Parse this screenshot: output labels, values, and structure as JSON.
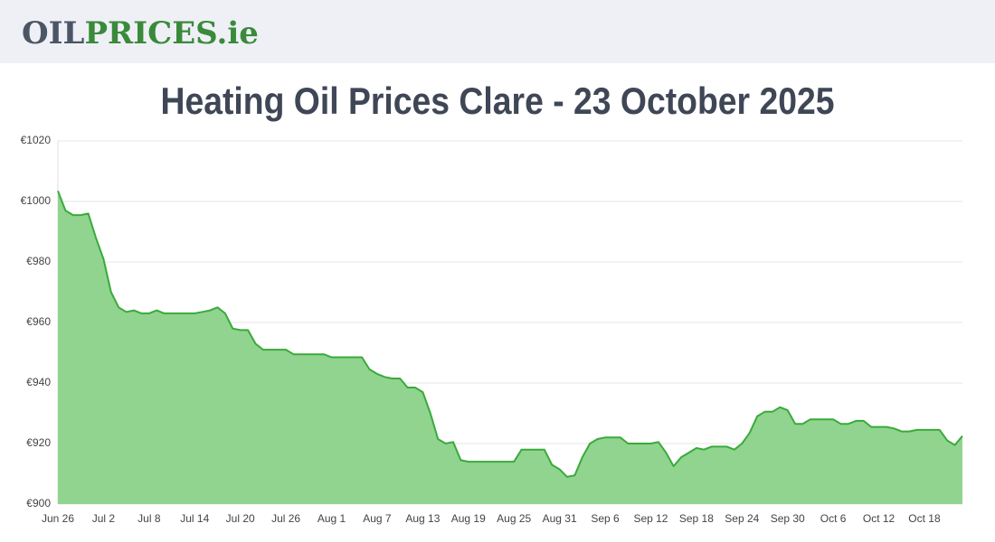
{
  "header": {
    "logo_dark": "OIL",
    "logo_green": "PRICES.ie"
  },
  "chart_data": {
    "type": "area",
    "title": "Heating Oil Prices Clare - 23 October 2025",
    "categories": [
      "Jun 26",
      null,
      null,
      null,
      null,
      null,
      "Jul 2",
      null,
      null,
      null,
      null,
      null,
      "Jul 8",
      null,
      null,
      null,
      null,
      null,
      "Jul 14",
      null,
      null,
      null,
      null,
      null,
      "Jul 20",
      null,
      null,
      null,
      null,
      null,
      "Jul 26",
      null,
      null,
      null,
      null,
      null,
      "Aug 1",
      null,
      null,
      null,
      null,
      null,
      "Aug 7",
      null,
      null,
      null,
      null,
      null,
      "Aug 13",
      null,
      null,
      null,
      null,
      null,
      "Aug 19",
      null,
      null,
      null,
      null,
      null,
      "Aug 25",
      null,
      null,
      null,
      null,
      null,
      "Aug 31",
      null,
      null,
      null,
      null,
      null,
      "Sep 6",
      null,
      null,
      null,
      null,
      null,
      "Sep 12",
      null,
      null,
      null,
      null,
      null,
      "Sep 18",
      null,
      null,
      null,
      null,
      null,
      "Sep 24",
      null,
      null,
      null,
      null,
      null,
      "Sep 30",
      null,
      null,
      null,
      null,
      null,
      "Oct 6",
      null,
      null,
      null,
      null,
      null,
      "Oct 12",
      null,
      null,
      null,
      null,
      null,
      "Oct 18",
      null,
      null,
      null,
      null,
      null
    ],
    "values": [
      1003.5,
      997,
      995.5,
      995.5,
      996,
      988,
      981,
      970,
      965,
      963.5,
      964,
      963,
      963,
      964,
      963,
      963,
      963,
      963,
      963,
      963.5,
      964,
      965,
      963,
      958,
      957.5,
      957.5,
      953,
      951,
      951,
      951,
      951,
      949.5,
      949.5,
      949.5,
      949.5,
      949.5,
      948.5,
      948.5,
      948.5,
      948.5,
      948.5,
      944.5,
      943,
      942,
      941.5,
      941.5,
      938.5,
      938.5,
      937,
      930,
      921.5,
      920,
      920.5,
      914.5,
      914,
      914,
      914,
      914,
      914,
      914,
      914,
      918,
      918,
      918,
      918,
      913,
      911.5,
      909,
      909.5,
      915.5,
      920,
      921.5,
      922,
      922,
      922,
      920,
      920,
      920,
      920,
      920.5,
      917,
      912.5,
      915.5,
      917,
      918.5,
      918,
      919,
      919,
      919,
      918,
      920,
      923.5,
      929,
      930.5,
      930.5,
      932,
      931,
      926.5,
      926.5,
      928,
      928,
      928,
      928,
      926.5,
      926.5,
      927.5,
      927.5,
      925.5,
      925.5,
      925.5,
      925,
      924,
      924,
      924.5,
      924.5,
      924.5,
      924.5,
      921,
      919.5,
      922.5
    ],
    "color": "#3aaa3a",
    "fill": "#90d490",
    "ylim": [
      900,
      1020
    ],
    "yticks": [
      {
        "value": 900,
        "label": "€900"
      },
      {
        "value": 920,
        "label": "€920"
      },
      {
        "value": 940,
        "label": "€940"
      },
      {
        "value": 960,
        "label": "€960"
      },
      {
        "value": 980,
        "label": "€980"
      },
      {
        "value": 1000,
        "label": "€1000"
      },
      {
        "value": 1020,
        "label": "€1020"
      }
    ],
    "grid": true
  }
}
